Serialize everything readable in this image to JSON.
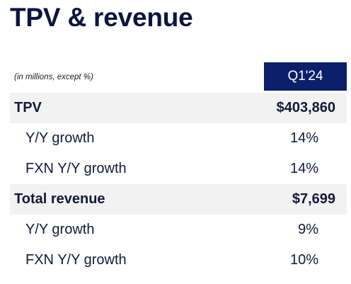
{
  "title": "TPV & revenue",
  "units_note": "(in millions, except %)",
  "period": "Q1'24",
  "colors": {
    "title": "#0c1540",
    "header_bg": "#0b1f6b",
    "row_shade": "#f2f2f3"
  },
  "rows": [
    {
      "label": "TPV",
      "value": "$403,860"
    },
    {
      "label": "Y/Y growth",
      "value": "14%"
    },
    {
      "label": "FXN Y/Y growth",
      "value": "14%"
    },
    {
      "label": "Total revenue",
      "value": "$7,699"
    },
    {
      "label": "Y/Y growth",
      "value": "9%"
    },
    {
      "label": "FXN Y/Y growth",
      "value": "10%"
    }
  ]
}
